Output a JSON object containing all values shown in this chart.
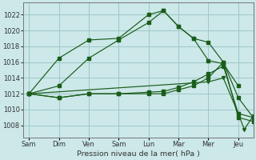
{
  "xlabel": "Pression niveau de la mer( hPa )",
  "ylim": [
    1006.5,
    1023.5
  ],
  "yticks": [
    1008,
    1010,
    1012,
    1014,
    1016,
    1018,
    1020,
    1022
  ],
  "bg_color": "#cce8e8",
  "grid_color": "#9ec8c8",
  "line_color": "#1a5c1a",
  "xtick_labels": [
    "Sam",
    "Dim",
    "Ven",
    "Sam",
    "Lun",
    "Mar",
    "Mer",
    "Jeu"
  ],
  "xtick_positions": [
    0,
    1,
    2,
    3,
    4,
    5,
    6,
    7
  ],
  "xlim": [
    -0.2,
    7.5
  ],
  "series": [
    {
      "x": [
        0,
        1,
        2,
        3,
        4,
        4.5,
        5,
        5.5,
        6,
        6.5,
        7
      ],
      "y": [
        1012.0,
        1016.5,
        1018.8,
        1019.0,
        1022.0,
        1022.5,
        1020.5,
        1019.0,
        1016.2,
        1015.8,
        1013.0
      ]
    },
    {
      "x": [
        0,
        1,
        2,
        3,
        4,
        4.5,
        5,
        5.5,
        6,
        6.5,
        7,
        7.5
      ],
      "y": [
        1012.0,
        1013.0,
        1016.5,
        1018.8,
        1021.0,
        1022.5,
        1020.5,
        1019.0,
        1018.5,
        1016.0,
        1011.5,
        1009.0
      ]
    },
    {
      "x": [
        0,
        1,
        2,
        3,
        4,
        4.5,
        5,
        5.5,
        6,
        6.5,
        7,
        7.5
      ],
      "y": [
        1012.0,
        1011.5,
        1012.0,
        1012.0,
        1012.2,
        1012.3,
        1012.8,
        1013.5,
        1014.5,
        1015.5,
        1009.5,
        1009.0
      ]
    },
    {
      "x": [
        0,
        1,
        2,
        3,
        4,
        4.5,
        5,
        5.5,
        6,
        6.5,
        7,
        7.5
      ],
      "y": [
        1012.0,
        1011.5,
        1012.0,
        1012.0,
        1012.0,
        1012.0,
        1012.5,
        1013.0,
        1014.0,
        1016.0,
        1009.0,
        1008.5
      ]
    },
    {
      "x": [
        0,
        6,
        6.5,
        7,
        7.2,
        7.5
      ],
      "y": [
        1012.0,
        1013.5,
        1014.0,
        1009.5,
        1007.5,
        1009.2
      ]
    }
  ]
}
